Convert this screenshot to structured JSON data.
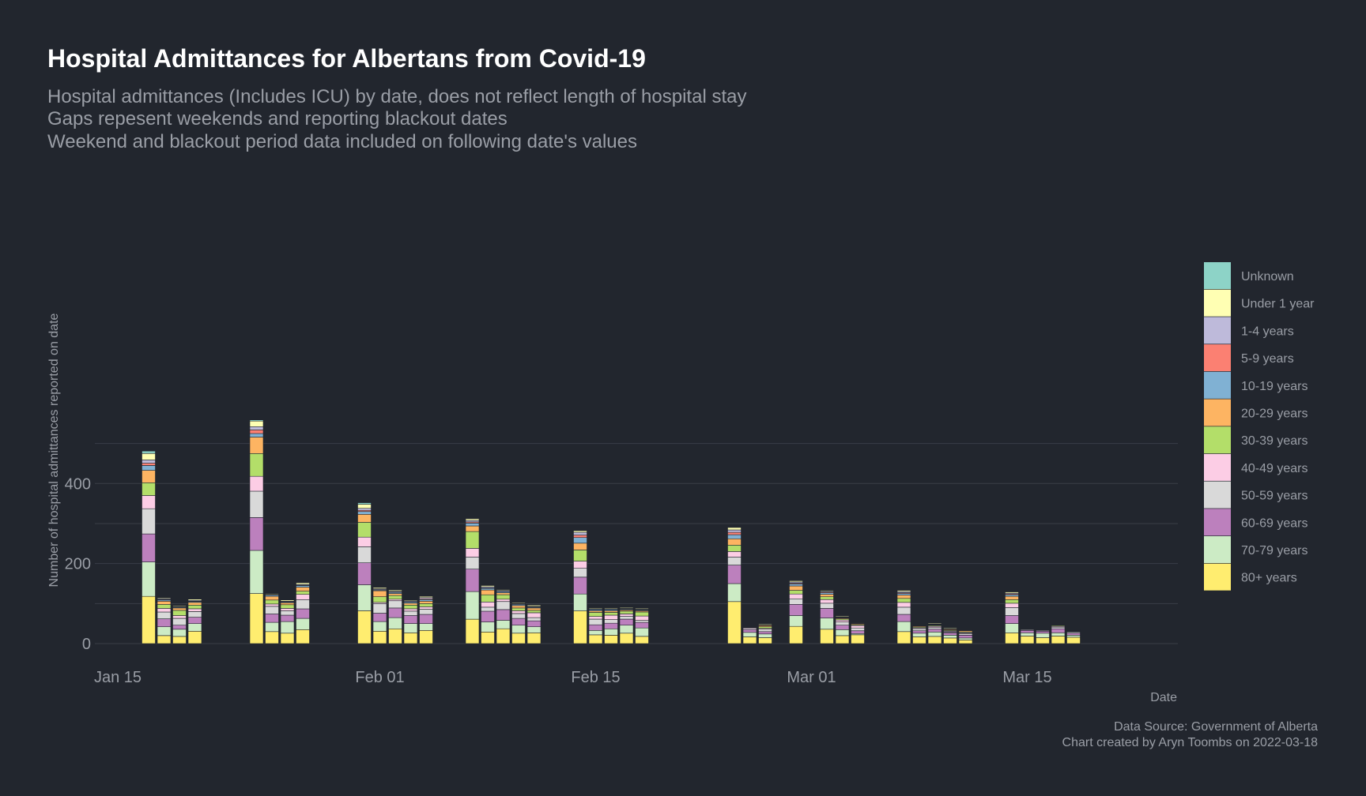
{
  "chart_data": {
    "type": "bar",
    "stacked": true,
    "title": "Hospital Admittances for Albertans from Covid-19",
    "subtitle": [
      "Hospital admittances (Includes ICU) by date, does not reflect length of hospital stay",
      "Gaps repesent weekends and reporting blackout dates",
      "Weekend and blackout period data included on following date's values"
    ],
    "xlabel": "Date",
    "ylabel": "Number of hospital admittances reported on date",
    "ylim": [
      0,
      550
    ],
    "yticks": [
      0,
      200,
      400
    ],
    "x_range": [
      "2022-01-15",
      "2022-03-22"
    ],
    "xticks": [
      {
        "label": "Jan 15",
        "date": "2022-01-15"
      },
      {
        "label": "Feb 01",
        "date": "2022-02-01"
      },
      {
        "label": "Feb 15",
        "date": "2022-02-15"
      },
      {
        "label": "Mar 01",
        "date": "2022-03-01"
      },
      {
        "label": "Mar 15",
        "date": "2022-03-15"
      }
    ],
    "grid": true,
    "legend_position": "right",
    "series": [
      {
        "name": "80+ years",
        "color": "#ffed6f"
      },
      {
        "name": "70-79 years",
        "color": "#ccebc5"
      },
      {
        "name": "60-69 years",
        "color": "#bc80bd"
      },
      {
        "name": "50-59 years",
        "color": "#d9d9d9"
      },
      {
        "name": "40-49 years",
        "color": "#fccde5"
      },
      {
        "name": "30-39 years",
        "color": "#b3de69"
      },
      {
        "name": "20-29 years",
        "color": "#fdb462"
      },
      {
        "name": "10-19 years",
        "color": "#80b1d3"
      },
      {
        "name": "5-9 years",
        "color": "#fb8072"
      },
      {
        "name": "1-4 years",
        "color": "#bebada"
      },
      {
        "name": "Under 1 year",
        "color": "#ffffb3"
      },
      {
        "name": "Unknown",
        "color": "#8dd3c7"
      }
    ],
    "data": [
      {
        "date": "2022-01-17",
        "values": [
          118,
          86,
          70,
          63,
          33,
          32,
          31,
          12,
          6,
          8,
          16,
          6
        ]
      },
      {
        "date": "2022-01-18",
        "values": [
          20,
          22,
          20,
          17,
          9,
          10,
          8,
          3,
          1,
          2,
          2,
          1
        ]
      },
      {
        "date": "2022-01-19",
        "values": [
          18,
          18,
          10,
          17,
          7,
          13,
          6,
          2,
          1,
          1,
          2,
          0
        ]
      },
      {
        "date": "2022-01-20",
        "values": [
          31,
          19,
          16,
          14,
          7,
          9,
          7,
          2,
          1,
          2,
          3,
          0
        ]
      },
      {
        "date": "2022-01-24",
        "values": [
          125,
          108,
          82,
          66,
          37,
          57,
          41,
          9,
          9,
          8,
          14,
          3
        ]
      },
      {
        "date": "2022-01-25",
        "values": [
          30,
          23,
          21,
          19,
          6,
          10,
          9,
          3,
          1,
          1,
          2,
          1
        ]
      },
      {
        "date": "2022-01-26",
        "values": [
          26,
          29,
          16,
          11,
          6,
          9,
          5,
          2,
          1,
          1,
          3,
          0
        ]
      },
      {
        "date": "2022-01-27",
        "values": [
          35,
          28,
          24,
          23,
          13,
          8,
          10,
          4,
          1,
          2,
          4,
          0
        ]
      },
      {
        "date": "2022-01-31",
        "values": [
          82,
          65,
          55,
          40,
          24,
          37,
          20,
          7,
          3,
          5,
          10,
          4
        ]
      },
      {
        "date": "2022-02-01",
        "values": [
          31,
          24,
          21,
          24,
          3,
          14,
          15,
          2,
          1,
          2,
          3,
          0
        ]
      },
      {
        "date": "2022-02-02",
        "values": [
          37,
          28,
          24,
          18,
          4,
          9,
          5,
          3,
          1,
          2,
          3,
          1
        ]
      },
      {
        "date": "2022-02-03",
        "values": [
          27,
          23,
          20,
          11,
          6,
          9,
          5,
          3,
          1,
          2,
          2,
          0
        ]
      },
      {
        "date": "2022-02-04",
        "values": [
          33,
          17,
          23,
          13,
          6,
          8,
          6,
          4,
          2,
          3,
          3,
          1
        ]
      },
      {
        "date": "2022-02-07",
        "values": [
          61,
          69,
          56,
          30,
          22,
          42,
          14,
          7,
          3,
          4,
          4,
          0
        ]
      },
      {
        "date": "2022-02-08",
        "values": [
          29,
          25,
          27,
          10,
          13,
          18,
          12,
          4,
          1,
          3,
          3,
          0
        ]
      },
      {
        "date": "2022-02-09",
        "values": [
          37,
          21,
          27,
          20,
          6,
          11,
          5,
          3,
          1,
          2,
          2,
          0
        ]
      },
      {
        "date": "2022-02-10",
        "values": [
          26,
          20,
          17,
          12,
          7,
          7,
          6,
          3,
          1,
          1,
          2,
          0
        ]
      },
      {
        "date": "2022-02-11",
        "values": [
          27,
          15,
          15,
          8,
          12,
          6,
          6,
          2,
          1,
          1,
          3,
          0
        ]
      },
      {
        "date": "2022-02-14",
        "values": [
          82,
          42,
          42,
          22,
          18,
          28,
          17,
          14,
          6,
          7,
          4,
          0
        ]
      },
      {
        "date": "2022-02-15",
        "values": [
          22,
          11,
          14,
          14,
          7,
          10,
          4,
          3,
          1,
          1,
          2,
          0
        ]
      },
      {
        "date": "2022-02-16",
        "values": [
          21,
          16,
          14,
          9,
          11,
          7,
          4,
          3,
          1,
          1,
          2,
          0
        ]
      },
      {
        "date": "2022-02-17",
        "values": [
          26,
          20,
          15,
          7,
          6,
          7,
          3,
          2,
          1,
          1,
          2,
          0
        ]
      },
      {
        "date": "2022-02-18",
        "values": [
          18,
          21,
          14,
          5,
          11,
          10,
          3,
          2,
          1,
          1,
          2,
          0
        ]
      },
      {
        "date": "2022-02-24",
        "values": [
          105,
          45,
          46,
          20,
          14,
          16,
          16,
          10,
          6,
          6,
          6,
          0
        ]
      },
      {
        "date": "2022-02-25",
        "values": [
          17,
          11,
          7,
          3,
          2,
          1,
          1,
          1,
          1,
          1,
          1,
          0
        ]
      },
      {
        "date": "2022-02-26",
        "values": [
          15,
          9,
          6,
          6,
          2,
          4,
          3,
          1,
          1,
          1,
          2,
          0
        ]
      },
      {
        "date": "2022-02-28",
        "values": [
          43,
          27,
          28,
          14,
          12,
          9,
          11,
          5,
          2,
          3,
          3,
          0
        ]
      },
      {
        "date": "2022-03-02",
        "values": [
          36,
          28,
          24,
          13,
          9,
          7,
          6,
          4,
          2,
          2,
          2,
          0
        ]
      },
      {
        "date": "2022-03-03",
        "values": [
          20,
          15,
          11,
          8,
          5,
          3,
          2,
          1,
          1,
          1,
          2,
          0
        ]
      },
      {
        "date": "2022-03-04",
        "values": [
          22,
          3,
          7,
          7,
          6,
          2,
          2,
          1,
          1,
          1,
          1,
          0
        ]
      },
      {
        "date": "2022-03-07",
        "values": [
          30,
          25,
          18,
          18,
          12,
          10,
          8,
          4,
          2,
          3,
          3,
          0
        ]
      },
      {
        "date": "2022-03-08",
        "values": [
          17,
          9,
          6,
          5,
          2,
          2,
          2,
          1,
          1,
          1,
          1,
          0
        ]
      },
      {
        "date": "2022-03-09",
        "values": [
          18,
          11,
          7,
          4,
          3,
          2,
          1,
          1,
          1,
          1,
          2,
          0
        ]
      },
      {
        "date": "2022-03-10",
        "values": [
          14,
          7,
          6,
          2,
          2,
          2,
          2,
          1,
          1,
          1,
          2,
          0
        ]
      },
      {
        "date": "2022-03-11",
        "values": [
          9,
          5,
          7,
          4,
          2,
          2,
          3,
          1,
          1,
          1,
          1,
          0
        ]
      },
      {
        "date": "2022-03-14",
        "values": [
          27,
          23,
          20,
          20,
          11,
          9,
          8,
          4,
          2,
          2,
          3,
          0
        ]
      },
      {
        "date": "2022-03-15",
        "values": [
          19,
          8,
          6,
          2,
          1,
          1,
          1,
          1,
          1,
          1,
          1,
          0
        ]
      },
      {
        "date": "2022-03-16",
        "values": [
          15,
          11,
          5,
          2,
          1,
          1,
          1,
          1,
          1,
          1,
          1,
          0
        ]
      },
      {
        "date": "2022-03-17",
        "values": [
          19,
          8,
          10,
          4,
          2,
          2,
          1,
          1,
          1,
          1,
          1,
          0
        ]
      },
      {
        "date": "2022-03-18",
        "values": [
          16,
          5,
          5,
          3,
          1,
          1,
          1,
          1,
          1,
          1,
          1,
          0
        ]
      }
    ]
  },
  "caption": {
    "source": "Data Source: Government of Alberta",
    "credit": "Chart created by Aryn Toombs on 2022-03-18"
  },
  "colors": {
    "background": "#22262e",
    "grid": "#3a3e47",
    "text": "#9a9ea6",
    "title": "#ffffff"
  }
}
